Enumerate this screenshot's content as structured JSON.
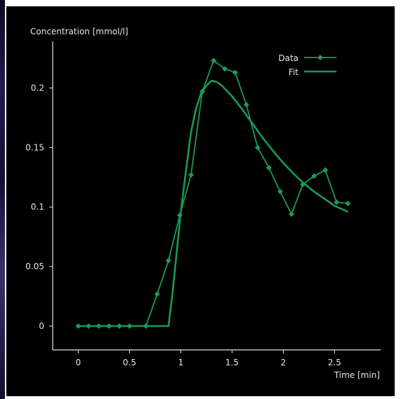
{
  "colors": {
    "background": "#000000",
    "frame": "#ffffff",
    "series": "#1a9a55",
    "axis": "#e6e6e6"
  },
  "chart_data": {
    "type": "line",
    "title": "",
    "ylabel": "Concentration [mmol/l]",
    "xlabel": "Time [min]",
    "xlim": [
      -0.25,
      2.95
    ],
    "ylim": [
      -0.02,
      0.245
    ],
    "x_ticks": [
      0,
      0.5,
      1,
      1.5,
      2,
      2.5
    ],
    "x_tick_labels": [
      "0",
      "0.5",
      "1",
      "1.5",
      "2",
      "2.5"
    ],
    "y_ticks": [
      0,
      0.05,
      0.1,
      0.15,
      0.2
    ],
    "y_tick_labels": [
      "0",
      "0.05",
      "0.1",
      "0.15",
      "0.2"
    ],
    "grid": false,
    "legend_position": "top-right",
    "series": [
      {
        "name": "Data",
        "marker": "diamond",
        "x": [
          0,
          0.1,
          0.2,
          0.3,
          0.4,
          0.5,
          0.66,
          0.77,
          0.88,
          0.99,
          1.1,
          1.21,
          1.32,
          1.43,
          1.53,
          1.64,
          1.75,
          1.86,
          1.97,
          2.08,
          2.19,
          2.3,
          2.41,
          2.52,
          2.63
        ],
        "y": [
          0,
          0,
          0,
          0,
          0,
          0,
          0,
          0.027,
          0.055,
          0.093,
          0.127,
          0.197,
          0.223,
          0.216,
          0.213,
          0.186,
          0.15,
          0.133,
          0.113,
          0.094,
          0.119,
          0.126,
          0.131,
          0.104,
          0.103
        ]
      },
      {
        "name": "Fit",
        "marker": "none",
        "x": [
          0,
          0.88,
          0.92,
          0.96,
          1.0,
          1.05,
          1.1,
          1.15,
          1.2,
          1.25,
          1.3,
          1.35,
          1.4,
          1.5,
          1.6,
          1.7,
          1.8,
          1.9,
          2.0,
          2.1,
          2.2,
          2.3,
          2.4,
          2.5,
          2.63
        ],
        "y": [
          0,
          0,
          0.028,
          0.062,
          0.096,
          0.13,
          0.163,
          0.183,
          0.196,
          0.202,
          0.206,
          0.205,
          0.202,
          0.193,
          0.182,
          0.17,
          0.158,
          0.147,
          0.137,
          0.128,
          0.12,
          0.113,
          0.107,
          0.101,
          0.096
        ]
      }
    ]
  }
}
